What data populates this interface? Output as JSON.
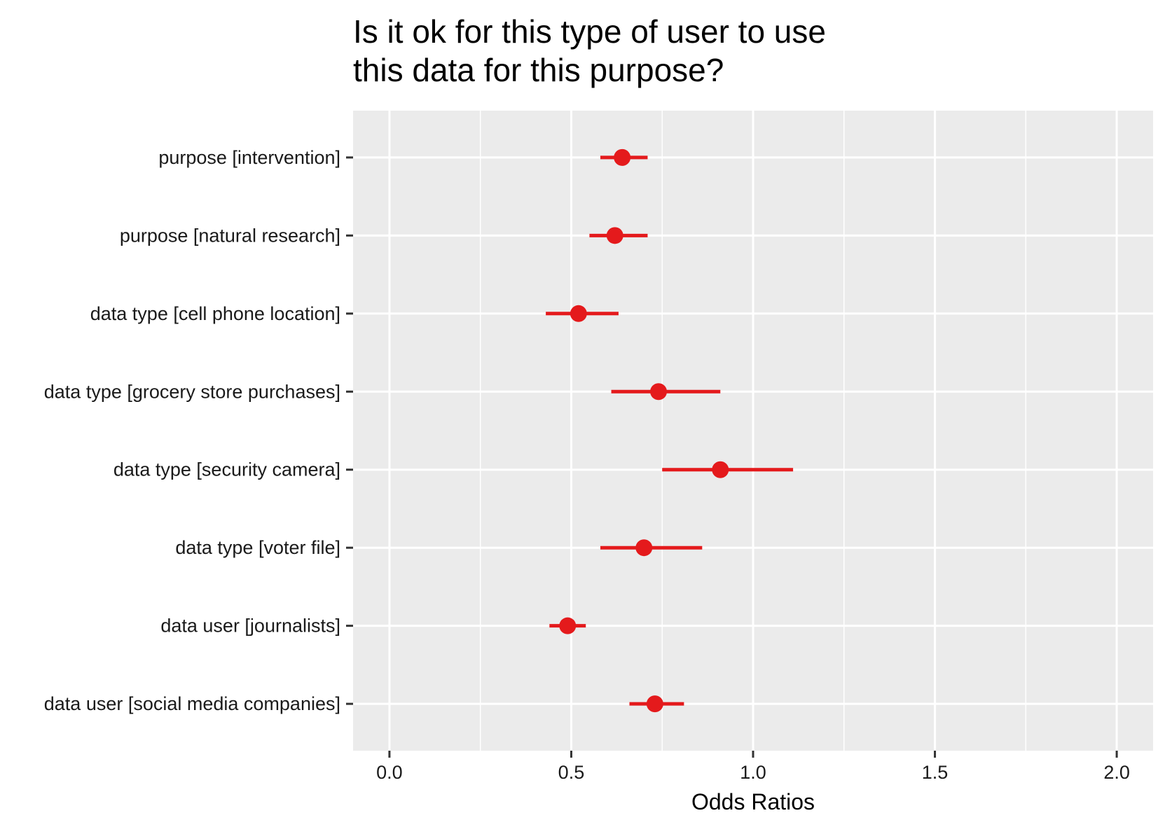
{
  "chart_data": {
    "type": "scatter",
    "title_lines": [
      "Is it ok for this type of user to use",
      "this data for this purpose?"
    ],
    "xlabel": "Odds Ratios",
    "ylabel": "",
    "xlim": [
      -0.1,
      2.1
    ],
    "x_ticks": [
      0.0,
      0.5,
      1.0,
      1.5,
      2.0
    ],
    "x_tick_labels": [
      "0.0",
      "0.5",
      "1.0",
      "1.5",
      "2.0"
    ],
    "grid": true,
    "colors": {
      "panel": "#ebebeb",
      "grid": "#ffffff",
      "point": "#e41a1c",
      "tick": "#333333"
    },
    "categories": [
      "purpose [intervention]",
      "purpose [natural research]",
      "data type [cell phone location]",
      "data type [grocery store purchases]",
      "data type [security camera]",
      "data type [voter file]",
      "data user [journalists]",
      "data user [social media companies]"
    ],
    "estimates": [
      0.64,
      0.62,
      0.52,
      0.74,
      0.91,
      0.7,
      0.49,
      0.73
    ],
    "ci_low": [
      0.58,
      0.55,
      0.43,
      0.61,
      0.75,
      0.58,
      0.44,
      0.66
    ],
    "ci_high": [
      0.71,
      0.71,
      0.63,
      0.91,
      1.11,
      0.86,
      0.54,
      0.81
    ]
  }
}
